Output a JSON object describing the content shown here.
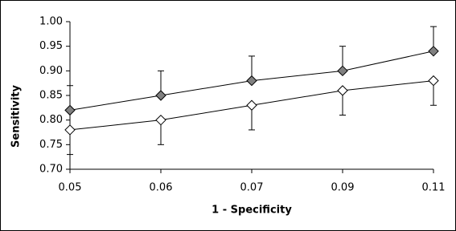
{
  "chart_data": {
    "type": "line",
    "x_label": "1 - Specificity",
    "y_label": "Sensitivity",
    "categories": [
      "0.05",
      "0.06",
      "0.07",
      "0.09",
      "0.11"
    ],
    "series": [
      {
        "color": "#808080",
        "values": [
          0.82,
          0.85,
          0.88,
          0.9,
          0.94
        ],
        "errors": [
          0.05,
          0.05,
          0.05,
          0.05,
          0.05
        ],
        "error_direction": "up"
      },
      {
        "color": "#ffffff",
        "values": [
          0.78,
          0.8,
          0.83,
          0.86,
          0.88
        ],
        "errors": [
          0.05,
          0.05,
          0.05,
          0.05,
          0.05
        ],
        "error_direction": "down"
      }
    ],
    "ylim": [
      0.7,
      1.0
    ],
    "yticks": [
      {
        "value": 0.7,
        "label": "0.70"
      },
      0.75,
      {
        "value": 0.8,
        "label": "0.80"
      },
      0.85,
      {
        "value": 0.9,
        "label": "0.90"
      },
      0.95,
      {
        "value": 1.0,
        "label": "1.00"
      }
    ],
    "grid": false
  }
}
